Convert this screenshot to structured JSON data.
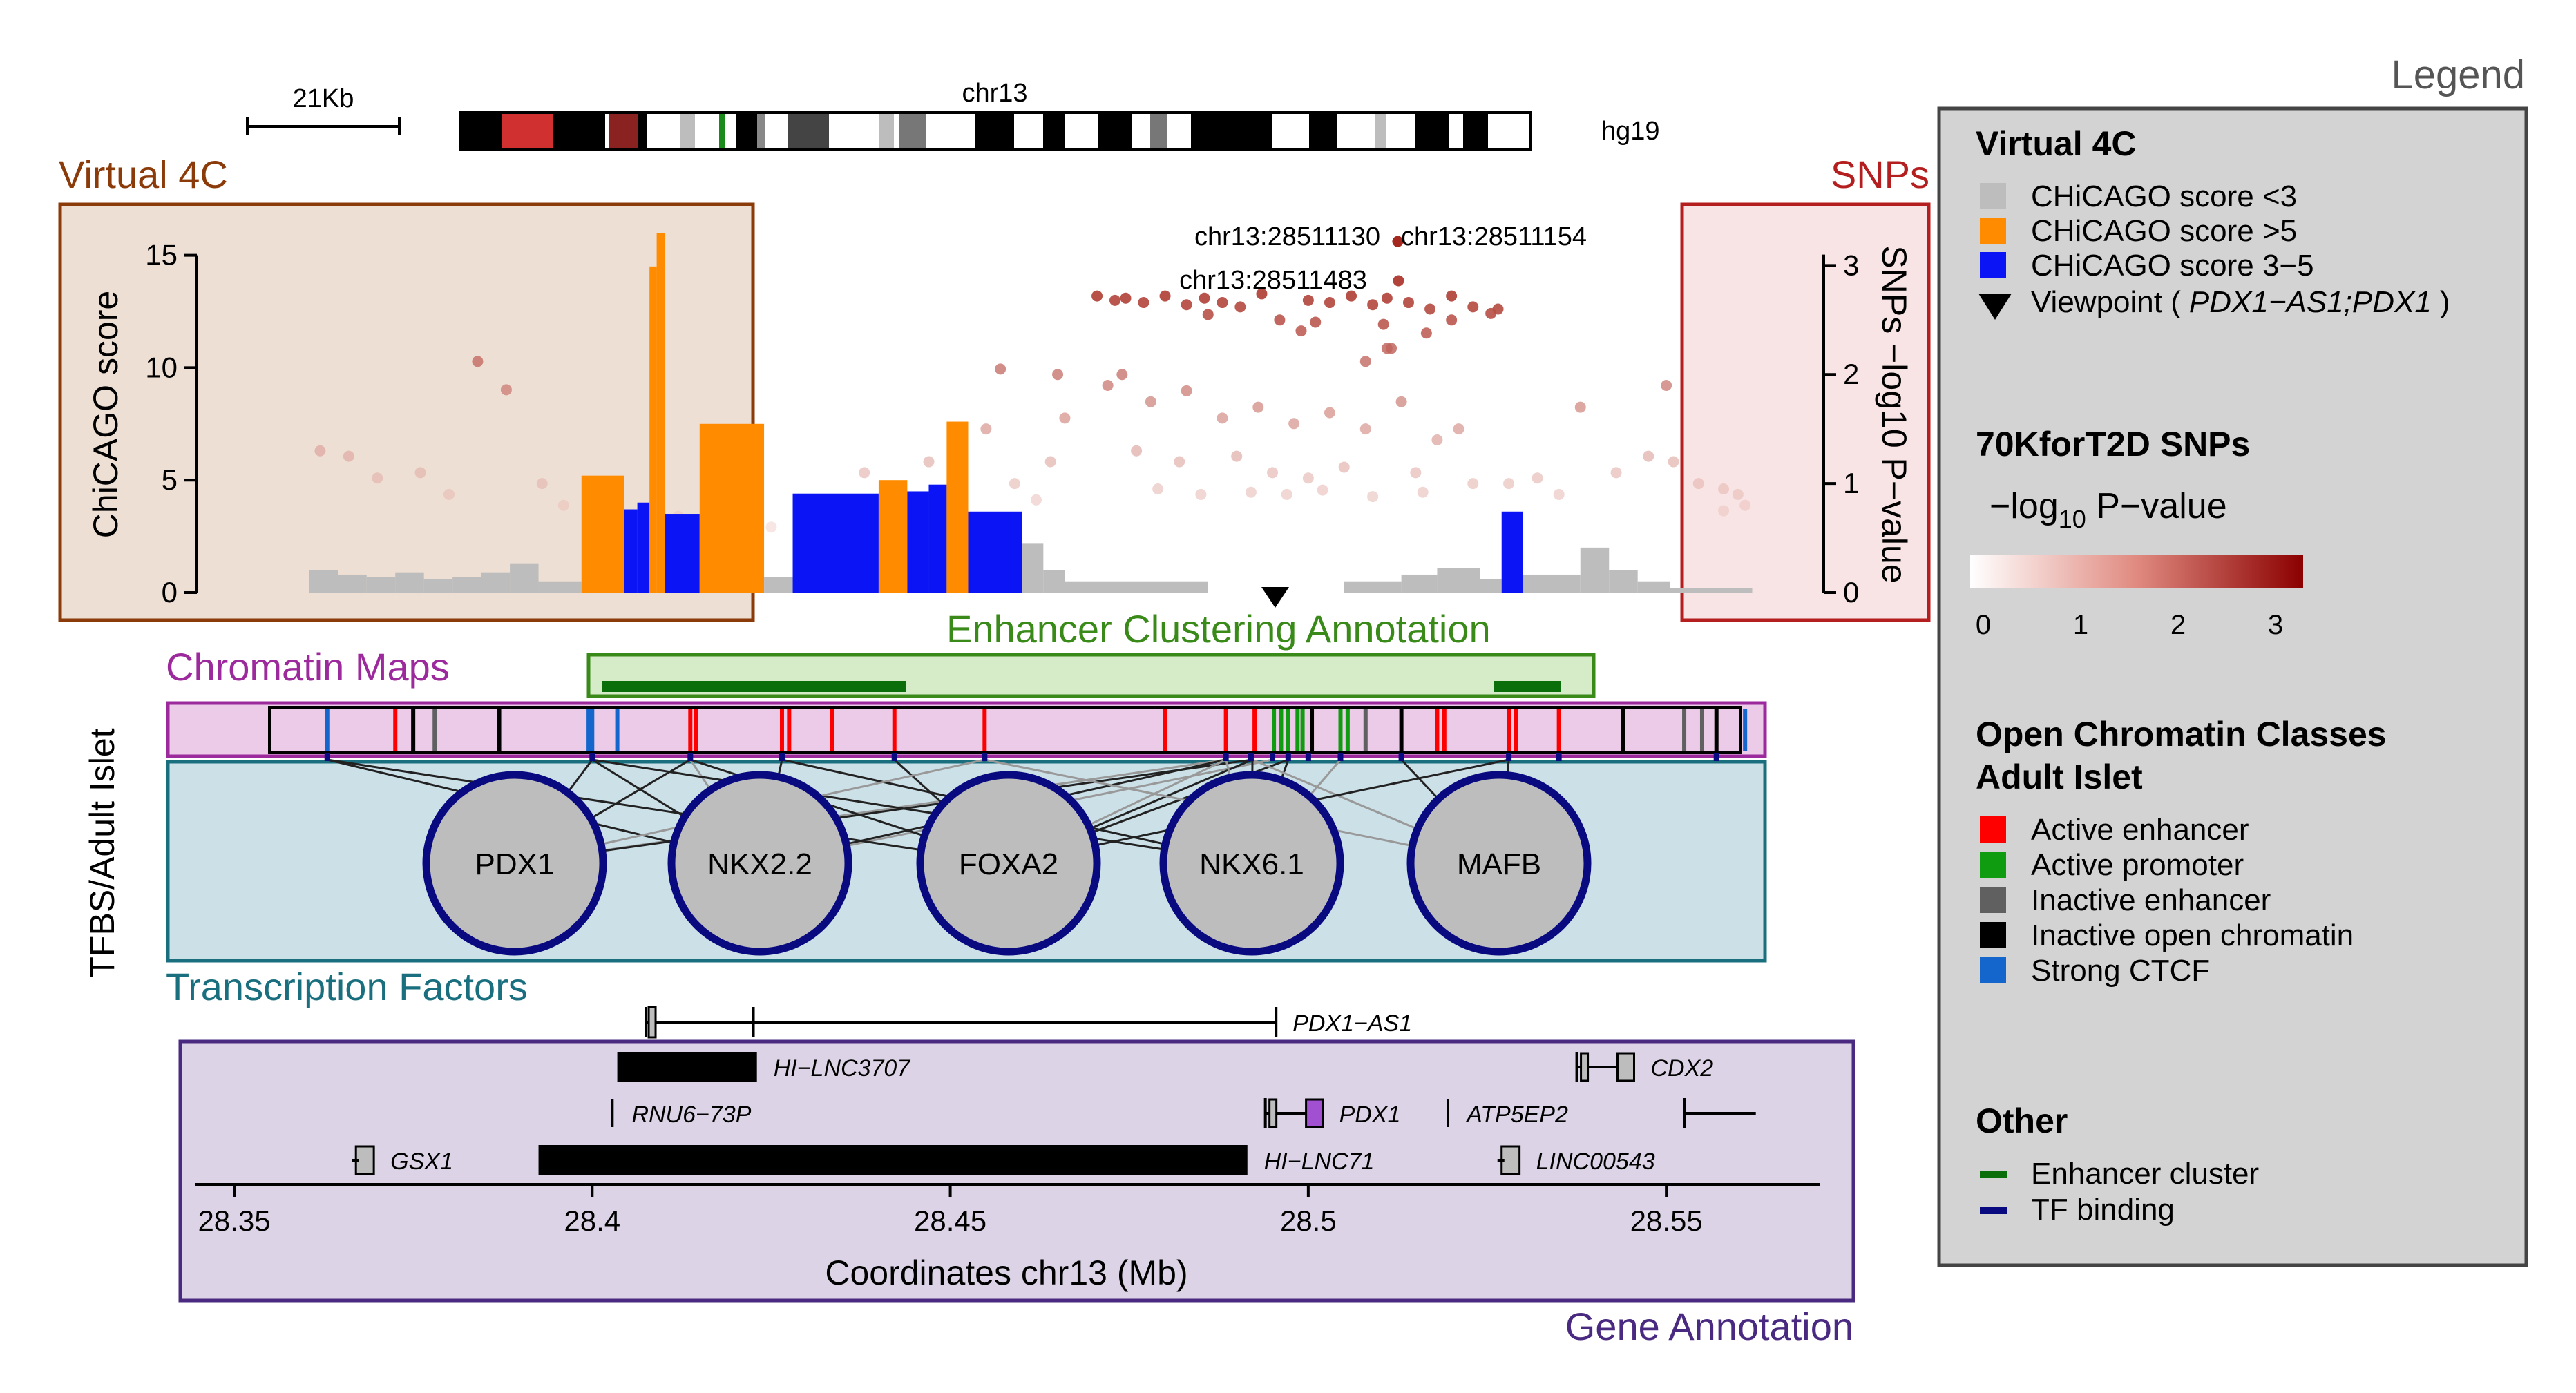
{
  "ideogram": {
    "chrom": "chr13",
    "scalebar": "21Kb",
    "genome": "hg19"
  },
  "virtual4c": {
    "title": "Virtual 4C",
    "ylabel": "ChiCAGO score",
    "yticks": [
      "0",
      "5",
      "10",
      "15"
    ],
    "ymax": 16,
    "bins": [
      {
        "x0": 28.3605,
        "x1": 28.3645,
        "v": 1.0,
        "c": "gray"
      },
      {
        "x0": 28.3645,
        "x1": 28.3685,
        "v": 0.8,
        "c": "gray"
      },
      {
        "x0": 28.3685,
        "x1": 28.3725,
        "v": 0.7,
        "c": "gray"
      },
      {
        "x0": 28.3725,
        "x1": 28.3765,
        "v": 0.9,
        "c": "gray"
      },
      {
        "x0": 28.3765,
        "x1": 28.3805,
        "v": 0.6,
        "c": "gray"
      },
      {
        "x0": 28.3805,
        "x1": 28.3845,
        "v": 0.7,
        "c": "gray"
      },
      {
        "x0": 28.3845,
        "x1": 28.3885,
        "v": 0.9,
        "c": "gray"
      },
      {
        "x0": 28.3885,
        "x1": 28.3925,
        "v": 1.3,
        "c": "gray"
      },
      {
        "x0": 28.3925,
        "x1": 28.3985,
        "v": 0.5,
        "c": "gray"
      },
      {
        "x0": 28.3985,
        "x1": 28.4045,
        "v": 5.2,
        "c": "orange"
      },
      {
        "x0": 28.4045,
        "x1": 28.4063,
        "v": 3.7,
        "c": "blue"
      },
      {
        "x0": 28.4063,
        "x1": 28.408,
        "v": 4.0,
        "c": "blue"
      },
      {
        "x0": 28.408,
        "x1": 28.409,
        "v": 14.5,
        "c": "orange"
      },
      {
        "x0": 28.409,
        "x1": 28.4102,
        "v": 16.0,
        "c": "orange"
      },
      {
        "x0": 28.4102,
        "x1": 28.4115,
        "v": 3.5,
        "c": "blue"
      },
      {
        "x0": 28.4115,
        "x1": 28.415,
        "v": 3.5,
        "c": "blue"
      },
      {
        "x0": 28.415,
        "x1": 28.424,
        "v": 7.5,
        "c": "orange"
      },
      {
        "x0": 28.424,
        "x1": 28.428,
        "v": 0.7,
        "c": "gray"
      },
      {
        "x0": 28.428,
        "x1": 28.44,
        "v": 4.4,
        "c": "blue"
      },
      {
        "x0": 28.44,
        "x1": 28.444,
        "v": 5.0,
        "c": "orange"
      },
      {
        "x0": 28.444,
        "x1": 28.447,
        "v": 4.5,
        "c": "blue"
      },
      {
        "x0": 28.447,
        "x1": 28.4495,
        "v": 4.8,
        "c": "blue"
      },
      {
        "x0": 28.4495,
        "x1": 28.4525,
        "v": 7.6,
        "c": "orange"
      },
      {
        "x0": 28.4525,
        "x1": 28.46,
        "v": 3.6,
        "c": "blue"
      },
      {
        "x0": 28.46,
        "x1": 28.463,
        "v": 2.2,
        "c": "gray"
      },
      {
        "x0": 28.463,
        "x1": 28.466,
        "v": 1.0,
        "c": "gray"
      },
      {
        "x0": 28.466,
        "x1": 28.486,
        "v": 0.5,
        "c": "gray"
      },
      {
        "x0": 28.505,
        "x1": 28.513,
        "v": 0.5,
        "c": "gray"
      },
      {
        "x0": 28.513,
        "x1": 28.518,
        "v": 0.8,
        "c": "gray"
      },
      {
        "x0": 28.518,
        "x1": 28.524,
        "v": 1.1,
        "c": "gray"
      },
      {
        "x0": 28.524,
        "x1": 28.527,
        "v": 0.6,
        "c": "gray"
      },
      {
        "x0": 28.527,
        "x1": 28.53,
        "v": 3.6,
        "c": "blue"
      },
      {
        "x0": 28.53,
        "x1": 28.538,
        "v": 0.8,
        "c": "gray"
      },
      {
        "x0": 28.538,
        "x1": 28.542,
        "v": 2.0,
        "c": "gray"
      },
      {
        "x0": 28.542,
        "x1": 28.546,
        "v": 1.0,
        "c": "gray"
      },
      {
        "x0": 28.546,
        "x1": 28.5505,
        "v": 0.5,
        "c": "gray"
      },
      {
        "x0": 28.5505,
        "x1": 28.562,
        "v": 0.2,
        "c": "gray"
      }
    ]
  },
  "snps": {
    "title": "SNPs",
    "ylabel": "SNPs −log10 P−value",
    "yticks": [
      "0",
      "1",
      "2",
      "3"
    ],
    "ymax": 3.3,
    "labels": [
      "chr13:28511130",
      "chr13:28511154",
      "chr13:28511483"
    ],
    "points": [
      [
        28.5125,
        3.22
      ],
      [
        28.5126,
        2.86
      ],
      [
        28.4705,
        2.72
      ],
      [
        28.473,
        2.68
      ],
      [
        28.4745,
        2.7
      ],
      [
        28.477,
        2.66
      ],
      [
        28.48,
        2.72
      ],
      [
        28.483,
        2.64
      ],
      [
        28.4855,
        2.7
      ],
      [
        28.488,
        2.66
      ],
      [
        28.4905,
        2.62
      ],
      [
        28.4935,
        2.74
      ],
      [
        28.5,
        2.68
      ],
      [
        28.503,
        2.66
      ],
      [
        28.506,
        2.72
      ],
      [
        28.509,
        2.64
      ],
      [
        28.511,
        2.7
      ],
      [
        28.514,
        2.66
      ],
      [
        28.517,
        2.6
      ],
      [
        28.52,
        2.72
      ],
      [
        28.523,
        2.62
      ],
      [
        28.5255,
        2.56
      ],
      [
        28.5265,
        2.6
      ],
      [
        28.486,
        2.55
      ],
      [
        28.496,
        2.5
      ],
      [
        28.501,
        2.48
      ],
      [
        28.5105,
        2.46
      ],
      [
        28.52,
        2.5
      ],
      [
        28.511,
        2.24
      ],
      [
        28.5116,
        2.24
      ],
      [
        28.508,
        2.12
      ],
      [
        28.5165,
        2.38
      ],
      [
        28.499,
        2.4
      ],
      [
        28.472,
        1.9
      ],
      [
        28.474,
        2.0
      ],
      [
        28.478,
        1.75
      ],
      [
        28.483,
        1.85
      ],
      [
        28.488,
        1.6
      ],
      [
        28.493,
        1.7
      ],
      [
        28.498,
        1.55
      ],
      [
        28.503,
        1.65
      ],
      [
        28.508,
        1.5
      ],
      [
        28.513,
        1.75
      ],
      [
        28.518,
        1.4
      ],
      [
        28.521,
        1.5
      ],
      [
        28.476,
        1.3
      ],
      [
        28.482,
        1.2
      ],
      [
        28.49,
        1.25
      ],
      [
        28.495,
        1.1
      ],
      [
        28.5,
        1.05
      ],
      [
        28.505,
        1.15
      ],
      [
        28.515,
        1.1
      ],
      [
        28.523,
        1.0
      ],
      [
        28.479,
        0.95
      ],
      [
        28.485,
        0.9
      ],
      [
        28.492,
        0.92
      ],
      [
        28.497,
        0.9
      ],
      [
        28.502,
        0.94
      ],
      [
        28.509,
        0.88
      ],
      [
        28.516,
        0.92
      ],
      [
        28.465,
        2.0
      ],
      [
        28.466,
        1.6
      ],
      [
        28.464,
        1.2
      ],
      [
        28.462,
        0.85
      ],
      [
        28.457,
        2.05
      ],
      [
        28.455,
        1.5
      ],
      [
        28.459,
        1.0
      ],
      [
        28.451,
        1.45
      ],
      [
        28.447,
        1.2
      ],
      [
        28.443,
        0.9
      ],
      [
        28.438,
        1.1
      ],
      [
        28.435,
        0.8
      ],
      [
        28.384,
        2.12
      ],
      [
        28.388,
        1.86
      ],
      [
        28.362,
        1.3
      ],
      [
        28.366,
        1.25
      ],
      [
        28.37,
        1.05
      ],
      [
        28.376,
        1.1
      ],
      [
        28.38,
        0.9
      ],
      [
        28.393,
        1.0
      ],
      [
        28.396,
        0.8
      ],
      [
        28.4,
        1.0
      ],
      [
        28.412,
        0.7
      ],
      [
        28.425,
        0.6
      ],
      [
        28.538,
        1.7
      ],
      [
        28.543,
        1.1
      ],
      [
        28.5475,
        1.25
      ],
      [
        28.551,
        1.2
      ],
      [
        28.5545,
        1.0
      ],
      [
        28.558,
        0.95
      ],
      [
        28.56,
        0.9
      ],
      [
        28.55,
        1.9
      ],
      [
        28.535,
        0.9
      ],
      [
        28.532,
        1.05
      ],
      [
        28.528,
        1.0
      ],
      [
        28.558,
        0.75
      ],
      [
        28.561,
        0.8
      ]
    ]
  },
  "ec_annotation": {
    "title": "Enhancer Clustering Annotation"
  },
  "chromatin": {
    "title": "Chromatin Maps",
    "side_label": "TFBS/Adult Islet"
  },
  "tf": {
    "title": "Transcription Factors",
    "factors": [
      "PDX1",
      "NKX2.2",
      "FOXA2",
      "NKX6.1",
      "MAFB"
    ]
  },
  "genes": {
    "title": "Gene Annotation",
    "xlabel": "Coordinates chr13 (Mb)",
    "xticks": [
      "28.35",
      "28.4",
      "28.45",
      "28.5",
      "28.55"
    ],
    "xmin": 28.3445,
    "xmax": 28.5715,
    "items": [
      {
        "name": "PDX1−AS1",
        "start": 28.4075,
        "end": 28.4955,
        "row": 0,
        "kind": "line"
      },
      {
        "name": "HI−LNC3707",
        "start": 28.4035,
        "end": 28.423,
        "row": 1,
        "kind": "box"
      },
      {
        "name": "CDX2",
        "start": 28.5375,
        "end": 28.5455,
        "row": 1,
        "kind": "gene"
      },
      {
        "name": "RNU6−73P",
        "start": 28.4028,
        "end": 28.4032,
        "row": 2,
        "kind": "tick"
      },
      {
        "name": "PDX1",
        "start": 28.494,
        "end": 28.502,
        "row": 2,
        "kind": "gene"
      },
      {
        "name": "ATP5EP2",
        "start": 28.5195,
        "end": 28.5198,
        "row": 2,
        "kind": "tick"
      },
      {
        "name": "",
        "start": 28.5525,
        "end": 28.5625,
        "row": 2,
        "kind": "line"
      },
      {
        "name": "GSX1",
        "start": 28.367,
        "end": 28.3695,
        "row": 3,
        "kind": "box2"
      },
      {
        "name": "HI−LNC71",
        "start": 28.3925,
        "end": 28.4915,
        "row": 3,
        "kind": "box"
      },
      {
        "name": "LINC00543",
        "start": 28.527,
        "end": 28.5295,
        "row": 3,
        "kind": "box2"
      }
    ]
  },
  "legend": {
    "title": "Legend",
    "v4c_heading": "Virtual 4C",
    "v4c_items": [
      {
        "label": "CHiCAGO score <3",
        "color": "#bdbdbd"
      },
      {
        "label": "CHiCAGO score >5",
        "color": "#ff8c00"
      },
      {
        "label": "CHiCAGO score 3−5",
        "color": "#0a14f5"
      }
    ],
    "viewpoint_prefix": "Viewpoint (",
    "viewpoint_genes": "PDX1−AS1;PDX1",
    "viewpoint_suffix": ")",
    "snp_heading": "70KforT2D SNPs",
    "snp_sub_prefix": "−log",
    "snp_sub_sub": "10",
    "snp_sub_suffix": " P−value",
    "gradient_ticks": [
      "0",
      "1",
      "2",
      "3"
    ],
    "oc_heading1": "Open Chromatin Classes",
    "oc_heading2": "Adult Islet",
    "oc_items": [
      {
        "label": "Active enhancer",
        "color": "#ff0000"
      },
      {
        "label": "Active promoter",
        "color": "#109c10"
      },
      {
        "label": "Inactive enhancer",
        "color": "#606060"
      },
      {
        "label": "Inactive open chromatin",
        "color": "#000000"
      },
      {
        "label": "Strong CTCF",
        "color": "#1466cc"
      }
    ],
    "other_heading": "Other",
    "other_items": [
      {
        "label": "Enhancer cluster",
        "color": "#0a6e0a"
      },
      {
        "label": "TF binding",
        "color": "#0a0a80"
      }
    ]
  },
  "colors": {
    "v4c_box": "#8b3a0a",
    "snp_box": "#b41e1e",
    "chromatin": "#9c2a9c",
    "tf_box": "#1a6f7f",
    "gene_box": "#4a2a80",
    "enhancer": "#3a8a1a"
  }
}
